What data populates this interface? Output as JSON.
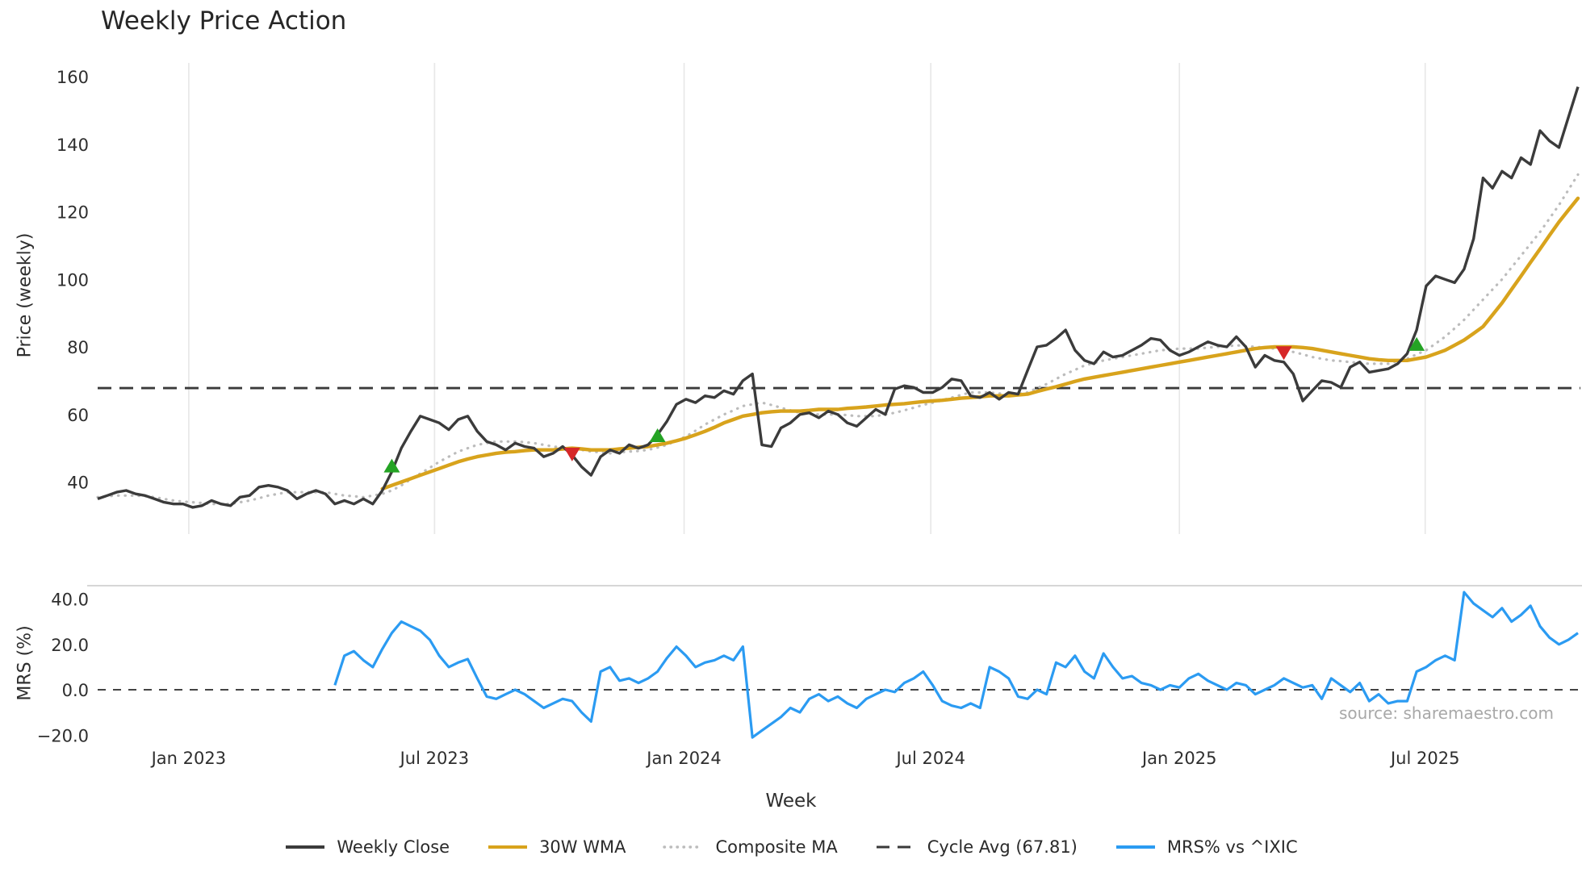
{
  "chart_data": {
    "type": "line",
    "title": "Weekly Price Action",
    "xlabel": "Week",
    "source": "source: sharemaestro.com",
    "x_axis": {
      "unit": "week_index",
      "n_weeks": 157,
      "ticks": [
        {
          "week": 9.6,
          "label": "Jan 2023"
        },
        {
          "week": 35.5,
          "label": "Jul 2023"
        },
        {
          "week": 61.8,
          "label": "Jan 2024"
        },
        {
          "week": 87.8,
          "label": "Jul 2024"
        },
        {
          "week": 114.0,
          "label": "Jan 2025"
        },
        {
          "week": 139.9,
          "label": "Jul 2025"
        }
      ]
    },
    "price_panel": {
      "ylabel": "Price (weekly)",
      "ylim": [
        25,
        164
      ],
      "yticks": [
        {
          "value": 40,
          "label": "40"
        },
        {
          "value": 60,
          "label": "60"
        },
        {
          "value": 80,
          "label": "80"
        },
        {
          "value": 100,
          "label": "100"
        },
        {
          "value": 120,
          "label": "120"
        },
        {
          "value": 140,
          "label": "140"
        },
        {
          "value": 160,
          "label": "160"
        }
      ],
      "cycle_avg": 67.81,
      "series": {
        "weekly_close": {
          "start_week": 0,
          "values": [
            35,
            36,
            37,
            37.5,
            36.5,
            36,
            35,
            34,
            33.5,
            33.5,
            32.5,
            33,
            34.5,
            33.5,
            33,
            35.5,
            36,
            38.5,
            39,
            38.5,
            37.5,
            35,
            36.5,
            37.5,
            36.5,
            33.5,
            34.5,
            33.5,
            35,
            33.5,
            37.5,
            43,
            50,
            55,
            59.5,
            58.5,
            57.5,
            55.5,
            58.5,
            59.5,
            55,
            52,
            51,
            49.5,
            51.5,
            50.5,
            50,
            47.5,
            48.5,
            50.5,
            48,
            44.5,
            42,
            47.5,
            49.5,
            48.5,
            51,
            50,
            51,
            54,
            58,
            63,
            64.5,
            63.5,
            65.5,
            65,
            67,
            66,
            70,
            72,
            51,
            50.5,
            56,
            57.5,
            60,
            60.5,
            59,
            61,
            60,
            57.5,
            56.5,
            59,
            61.5,
            60,
            67.5,
            68.5,
            68,
            66.5,
            66.5,
            68,
            70.5,
            70,
            65.5,
            65,
            66.5,
            64.5,
            66.5,
            66,
            73,
            80,
            80.5,
            82.5,
            85,
            79,
            76,
            75,
            78.5,
            77,
            77.5,
            79,
            80.5,
            82.5,
            82,
            79,
            77.5,
            78.5,
            80,
            81.5,
            80.5,
            80,
            83,
            80,
            74,
            77.5,
            76,
            75.5,
            72,
            64,
            67,
            70,
            69.5,
            68,
            74,
            75.5,
            72.5,
            73,
            73.5,
            75,
            78,
            85,
            98,
            101,
            100,
            99,
            103,
            112,
            130,
            127,
            132,
            130,
            136,
            134,
            144,
            141,
            139,
            148,
            157
          ]
        },
        "wma_30w": {
          "start_week": 30,
          "values": [
            38,
            39,
            40,
            41,
            42,
            43,
            44,
            45,
            46,
            46.8,
            47.5,
            48,
            48.5,
            48.8,
            49,
            49.3,
            49.5,
            49.5,
            49.5,
            49.8,
            50,
            49.8,
            49.5,
            49.5,
            49.5,
            49.8,
            50,
            50.3,
            50.5,
            51,
            51.5,
            52.2,
            53,
            54,
            55,
            56.2,
            57.5,
            58.5,
            59.5,
            60,
            60.5,
            60.8,
            61,
            61,
            61,
            61.2,
            61.5,
            61.5,
            61.5,
            61.8,
            62,
            62.2,
            62.5,
            62.8,
            63,
            63.2,
            63.5,
            63.8,
            64,
            64.2,
            64.5,
            64.8,
            65,
            65.2,
            65.5,
            65.5,
            65.5,
            65.8,
            66,
            66.8,
            67.5,
            68.2,
            69,
            69.8,
            70.5,
            71,
            71.5,
            72,
            72.5,
            73,
            73.5,
            74,
            74.5,
            75,
            75.5,
            76,
            76.5,
            77,
            77.5,
            78,
            78.5,
            79,
            79.5,
            79.8,
            80,
            80,
            80,
            79.8,
            79.5,
            79,
            78.5,
            78,
            77.5,
            77,
            76.5,
            76.2,
            76,
            76,
            76,
            76.5,
            77,
            78,
            79,
            80.5,
            82,
            84,
            86,
            89.5,
            93,
            97,
            101,
            105,
            109,
            113,
            117,
            120.5,
            124
          ]
        },
        "composite_ma": {
          "start_week": 0,
          "values": [
            35.5,
            35.8,
            36,
            36,
            36,
            35.8,
            35.5,
            35,
            34.5,
            34.2,
            34,
            33.8,
            33.5,
            33.5,
            33.5,
            34,
            34.5,
            35.2,
            36,
            36.5,
            37,
            37,
            37,
            37,
            37,
            36.5,
            36,
            35.8,
            35.5,
            36,
            36.5,
            37.5,
            39,
            40.8,
            42.5,
            44.2,
            46,
            47.5,
            49,
            50,
            51,
            51.5,
            52,
            52,
            52,
            51.8,
            51.5,
            51,
            50.5,
            50.2,
            50,
            49.5,
            49,
            48.8,
            48.5,
            48.8,
            49,
            49.2,
            49.5,
            50.2,
            51,
            52.2,
            53.5,
            55.2,
            57,
            58.5,
            60,
            61.2,
            62.5,
            63,
            63.5,
            62.8,
            62,
            61.2,
            60.5,
            60.2,
            60,
            60,
            60,
            59.8,
            59.5,
            59.5,
            59.5,
            60,
            60.5,
            61.2,
            62,
            62.8,
            63.5,
            64.2,
            65,
            65.8,
            66.5,
            66.5,
            66.5,
            66.2,
            66,
            66.2,
            66.5,
            67.8,
            69,
            70.5,
            72,
            73.2,
            74.5,
            75.2,
            76,
            76.5,
            77,
            77.5,
            78,
            78.5,
            79,
            79.2,
            79.5,
            79.5,
            79.5,
            79.8,
            80,
            80.2,
            80.5,
            80.2,
            80,
            79.8,
            79.5,
            79,
            78.5,
            77.8,
            77,
            76.5,
            76,
            75.8,
            75.5,
            75.2,
            75,
            75,
            75,
            75.8,
            76.5,
            77.8,
            79,
            81,
            83,
            85.5,
            88,
            91,
            94,
            97,
            100,
            103.5,
            107,
            110.5,
            114,
            118,
            122,
            126.5,
            131
          ]
        }
      },
      "signals": [
        {
          "week": 31,
          "price": 44.5,
          "type": "buy"
        },
        {
          "week": 50,
          "price": 48.5,
          "type": "sell"
        },
        {
          "week": 59,
          "price": 53.5,
          "type": "buy"
        },
        {
          "week": 125,
          "price": 78.5,
          "type": "sell"
        },
        {
          "week": 139,
          "price": 80.5,
          "type": "buy"
        }
      ]
    },
    "mrs_panel": {
      "ylabel": "MRS (%)",
      "ylim": [
        -24,
        46
      ],
      "yticks": [
        {
          "value": -20,
          "label": "−20.0"
        },
        {
          "value": 0,
          "label": "0.0"
        },
        {
          "value": 20,
          "label": "20.0"
        },
        {
          "value": 40,
          "label": "40.0"
        }
      ],
      "zero_line": 0,
      "series": {
        "mrs_pct": {
          "start_week": 25,
          "values": [
            2,
            15,
            17,
            13,
            10,
            18,
            25,
            30,
            28,
            26,
            22,
            15,
            10,
            12,
            13.5,
            5,
            -3,
            -4,
            -2,
            0,
            -2,
            -5,
            -8,
            -6,
            -4,
            -5,
            -10,
            -14,
            8,
            10,
            4,
            5,
            3,
            5,
            8,
            14,
            19,
            15,
            10,
            12,
            13,
            15,
            13,
            19,
            -21,
            -18,
            -15,
            -12,
            -8,
            -10,
            -4,
            -2,
            -5,
            -3,
            -6,
            -8,
            -4,
            -2,
            0,
            -1,
            3,
            5,
            8,
            2,
            -5,
            -7,
            -8,
            -6,
            -8,
            10,
            8,
            5,
            -3,
            -4,
            0,
            -2,
            12,
            10,
            15,
            8,
            5,
            16,
            10,
            5,
            6,
            3,
            2,
            0,
            2,
            1,
            5,
            7,
            4,
            2,
            0,
            3,
            2,
            -2,
            0,
            2,
            5,
            3,
            1,
            2,
            -4,
            5,
            2,
            -1,
            3,
            -5,
            -2,
            -6,
            -5,
            -5,
            8,
            10,
            13,
            15,
            13,
            43,
            38,
            35,
            32,
            36,
            30,
            33,
            37,
            28,
            23,
            20,
            22,
            25
          ]
        }
      }
    },
    "legend": [
      {
        "label": "Weekly Close",
        "style": "solid",
        "color": "#3b3b3b"
      },
      {
        "label": "30W WMA",
        "style": "solid",
        "color": "#d8a31c"
      },
      {
        "label": "Composite MA",
        "style": "dotted",
        "color": "#bcbcbc"
      },
      {
        "label": "Cycle Avg (67.81)",
        "style": "dashed",
        "color": "#3a3a3a"
      },
      {
        "label": "MRS% vs ^IXIC",
        "style": "solid",
        "color": "#2b9bf2"
      }
    ],
    "colors": {
      "close": "#3b3b3b",
      "wma": "#d8a31c",
      "composite": "#bcbcbc",
      "cycle": "#3a3a3a",
      "mrs": "#2b9bf2",
      "buy": "#24a324",
      "sell": "#d62728",
      "grid": "#e8e8e8",
      "panel_border": "#c9c9c9",
      "zero": "#444444"
    }
  }
}
